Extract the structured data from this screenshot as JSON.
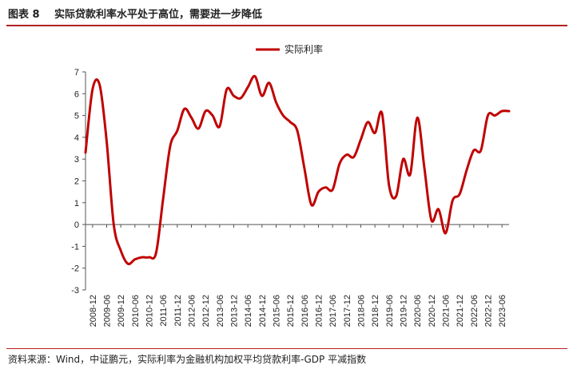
{
  "figure": {
    "label": "图表 8",
    "title": "实际贷款利率水平处于高位，需要进一步降低",
    "source": "资料来源：Wind，中证鹏元，实际利率为金融机构加权平均贷款利率-GDP 平减指数"
  },
  "colors": {
    "line": "#c00000",
    "rule": "#b22222",
    "axis": "#555555"
  },
  "chart_data": {
    "type": "line",
    "legend": "top-center",
    "grid": false,
    "ylim": [
      -3,
      7
    ],
    "yticks": [
      -3,
      -2,
      -1,
      0,
      1,
      2,
      3,
      4,
      5,
      6,
      7
    ],
    "xtick_labels": [
      "2008-12",
      "2009-06",
      "2009-12",
      "2010-06",
      "2010-12",
      "2011-06",
      "2011-12",
      "2012-06",
      "2012-12",
      "2013-06",
      "2013-12",
      "2014-06",
      "2014-12",
      "2015-06",
      "2015-12",
      "2016-06",
      "2016-12",
      "2017-06",
      "2017-12",
      "2018-06",
      "2018-12",
      "2019-06",
      "2019-12",
      "2020-06",
      "2020-12",
      "2021-06",
      "2021-12",
      "2022-06",
      "2022-12",
      "2023-06"
    ],
    "x_start": "2008-09",
    "series": [
      {
        "name": "实际利率",
        "color": "#c00000",
        "x": [
          "2008-09",
          "2008-12",
          "2009-03",
          "2009-06",
          "2009-09",
          "2009-12",
          "2010-03",
          "2010-06",
          "2010-09",
          "2010-12",
          "2011-03",
          "2011-06",
          "2011-09",
          "2011-12",
          "2012-03",
          "2012-06",
          "2012-09",
          "2012-12",
          "2013-03",
          "2013-06",
          "2013-09",
          "2013-12",
          "2014-03",
          "2014-06",
          "2014-09",
          "2014-12",
          "2015-03",
          "2015-06",
          "2015-09",
          "2015-12",
          "2016-03",
          "2016-06",
          "2016-09",
          "2016-12",
          "2017-03",
          "2017-06",
          "2017-09",
          "2017-12",
          "2018-03",
          "2018-06",
          "2018-09",
          "2018-12",
          "2019-03",
          "2019-06",
          "2019-09",
          "2019-12",
          "2020-03",
          "2020-06",
          "2020-09",
          "2020-12",
          "2021-03",
          "2021-06",
          "2021-09",
          "2021-12",
          "2022-03",
          "2022-06",
          "2022-09",
          "2022-12",
          "2023-03",
          "2023-06",
          "2023-09"
        ],
        "values": [
          3.3,
          6.2,
          6.4,
          3.8,
          0.0,
          -1.2,
          -1.8,
          -1.6,
          -1.5,
          -1.5,
          -1.3,
          1.2,
          3.6,
          4.3,
          5.3,
          4.9,
          4.4,
          5.2,
          5.0,
          4.5,
          6.2,
          5.9,
          5.8,
          6.3,
          6.8,
          5.9,
          6.5,
          5.6,
          5.0,
          4.7,
          4.3,
          2.6,
          0.9,
          1.5,
          1.7,
          1.6,
          2.8,
          3.2,
          3.1,
          3.9,
          4.7,
          4.2,
          5.1,
          1.8,
          1.3,
          3.0,
          2.3,
          4.9,
          2.6,
          0.2,
          0.7,
          -0.4,
          1.1,
          1.4,
          2.5,
          3.4,
          3.4,
          5.0,
          5.0,
          5.2,
          5.2
        ]
      }
    ]
  }
}
